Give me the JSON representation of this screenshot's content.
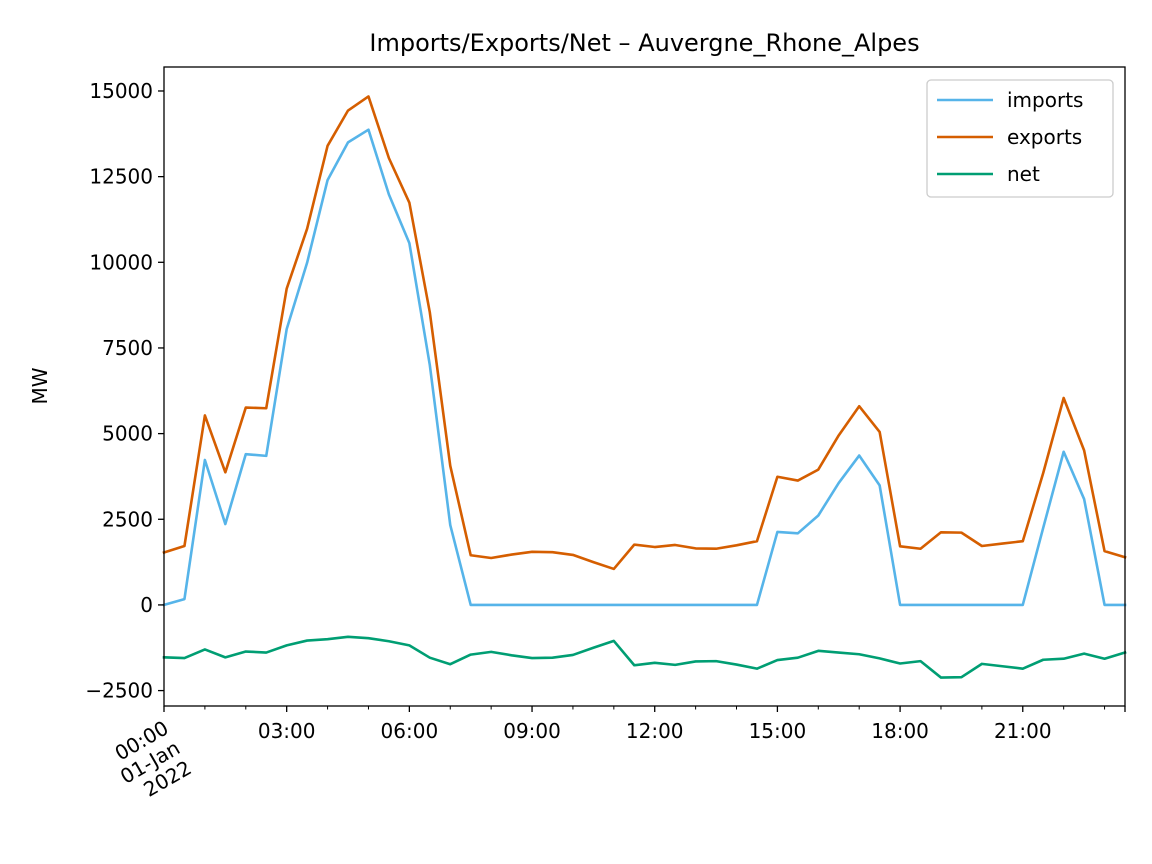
{
  "chart_data": {
    "type": "line",
    "title": "Imports/Exports/Net – Auvergne_Rhone_Alpes",
    "xlabel": "",
    "ylabel": "MW",
    "x_hours": [
      0,
      0.5,
      1,
      1.5,
      2,
      2.5,
      3,
      3.5,
      4,
      4.5,
      5,
      5.5,
      6,
      6.5,
      7,
      7.5,
      8,
      8.5,
      9,
      9.5,
      10,
      10.5,
      11,
      11.5,
      12,
      12.5,
      13,
      13.5,
      14,
      14.5,
      15,
      15.5,
      16,
      16.5,
      17,
      17.5,
      18,
      18.5,
      19,
      19.5,
      20,
      20.5,
      21,
      21.5,
      22,
      22.5,
      23,
      23.5
    ],
    "xlim": [
      0,
      23.5
    ],
    "ylim": [
      -2950,
      15700
    ],
    "x_ticks": [
      {
        "hour": 0,
        "lines": [
          "00:00",
          "01-Jan",
          "2022"
        ]
      },
      {
        "hour": 3,
        "lines": [
          "03:00"
        ]
      },
      {
        "hour": 6,
        "lines": [
          "06:00"
        ]
      },
      {
        "hour": 9,
        "lines": [
          "09:00"
        ]
      },
      {
        "hour": 12,
        "lines": [
          "12:00"
        ]
      },
      {
        "hour": 15,
        "lines": [
          "15:00"
        ]
      },
      {
        "hour": 18,
        "lines": [
          "18:00"
        ]
      },
      {
        "hour": 21,
        "lines": [
          "21:00"
        ]
      }
    ],
    "y_ticks": [
      -2500,
      0,
      2500,
      5000,
      7500,
      10000,
      12500,
      15000
    ],
    "y_tick_labels": [
      "−2500",
      "0",
      "2500",
      "5000",
      "7500",
      "10000",
      "12500",
      "15000"
    ],
    "legend_position": "top-right",
    "grid": false,
    "series": [
      {
        "name": "imports",
        "color": "#56b4e9",
        "values": [
          0,
          170,
          4230,
          2360,
          4400,
          4350,
          8050,
          9990,
          12400,
          13500,
          13870,
          11980,
          10560,
          7000,
          2330,
          0,
          0,
          0,
          0,
          0,
          0,
          0,
          0,
          0,
          0,
          0,
          0,
          0,
          0,
          0,
          2130,
          2090,
          2610,
          3560,
          4360,
          3490,
          0,
          0,
          0,
          0,
          0,
          0,
          0,
          2250,
          4470,
          3090,
          0,
          0
        ]
      },
      {
        "name": "exports",
        "color": "#d55e00",
        "values": [
          1530,
          1720,
          5530,
          3870,
          5760,
          5740,
          9230,
          10980,
          13400,
          14430,
          14840,
          13040,
          11740,
          8540,
          4060,
          1450,
          1370,
          1470,
          1550,
          1540,
          1460,
          1250,
          1050,
          1760,
          1690,
          1750,
          1650,
          1640,
          1740,
          1860,
          3740,
          3630,
          3950,
          4950,
          5800,
          5050,
          1710,
          1640,
          2120,
          2110,
          1720,
          1790,
          1860,
          3850,
          6040,
          4510,
          1570,
          1390
        ]
      },
      {
        "name": "net",
        "color": "#009e73",
        "values": [
          -1530,
          -1550,
          -1300,
          -1530,
          -1360,
          -1390,
          -1180,
          -1040,
          -1000,
          -930,
          -970,
          -1060,
          -1180,
          -1540,
          -1730,
          -1450,
          -1370,
          -1470,
          -1550,
          -1540,
          -1460,
          -1250,
          -1050,
          -1760,
          -1690,
          -1750,
          -1650,
          -1640,
          -1740,
          -1860,
          -1610,
          -1540,
          -1340,
          -1390,
          -1440,
          -1560,
          -1710,
          -1640,
          -2120,
          -2110,
          -1720,
          -1790,
          -1860,
          -1600,
          -1570,
          -1420,
          -1570,
          -1390
        ]
      }
    ]
  }
}
